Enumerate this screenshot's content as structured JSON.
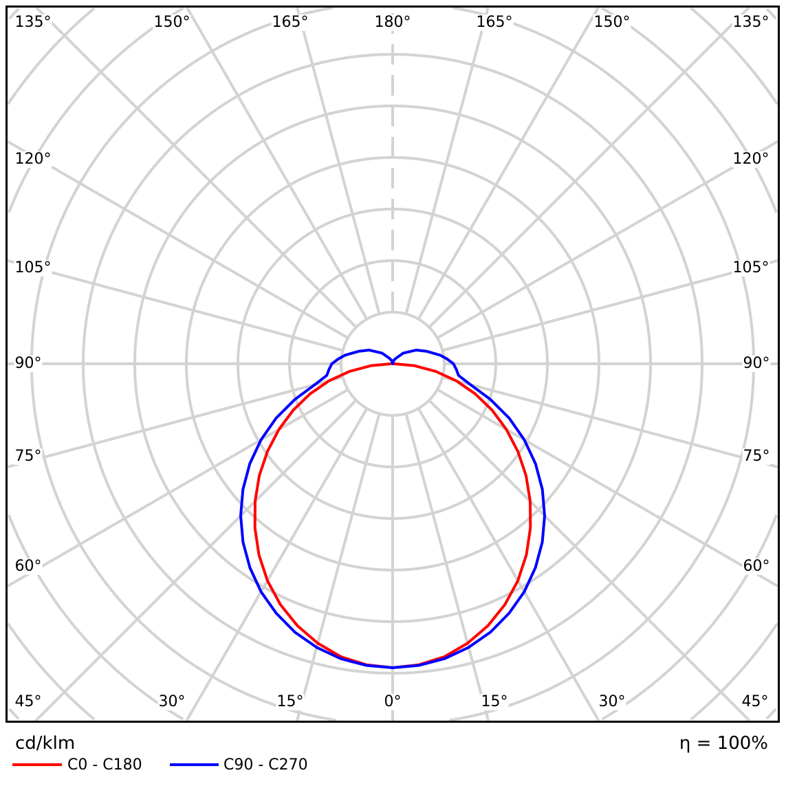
{
  "chart_data": {
    "type": "polar",
    "unit_label": "cd/klm",
    "efficiency_label": "η = 100%",
    "angle_labels": {
      "top": [
        "135°",
        "150°",
        "165°",
        "180°",
        "165°",
        "150°",
        "135°"
      ],
      "left": [
        "120°",
        "105°",
        "90°",
        "75°",
        "60°"
      ],
      "right": [
        "120°",
        "105°",
        "90°",
        "75°",
        "60°"
      ],
      "bottom": [
        "45°",
        "30°",
        "15°",
        "0°",
        "15°",
        "30°",
        "45°"
      ]
    },
    "angles_deg": [
      0,
      5,
      10,
      15,
      20,
      25,
      30,
      35,
      40,
      45,
      50,
      55,
      60,
      65,
      70,
      75,
      80,
      85,
      90,
      95,
      100,
      110,
      120,
      135,
      150,
      165,
      180
    ],
    "series": [
      {
        "name": "C0 - C180",
        "color": "#ff0000",
        "values": [
          100,
          99.4,
          97.9,
          95.2,
          91.7,
          87.4,
          82.4,
          76.7,
          70.5,
          64.0,
          57.3,
          50.3,
          43.2,
          36.1,
          28.9,
          21.7,
          14.4,
          7.2,
          0.5,
          0.3,
          0.2,
          0,
          0,
          0,
          0,
          0,
          0
        ]
      },
      {
        "name": "C90 - C270",
        "color": "#0000ff",
        "values": [
          100,
          99.6,
          98.5,
          96.6,
          94.0,
          90.6,
          86.6,
          81.9,
          76.6,
          70.7,
          64.3,
          57.4,
          50.0,
          42.3,
          34.2,
          26.5,
          22.0,
          21.0,
          20.0,
          18.0,
          16.0,
          12.0,
          9.0,
          5.0,
          2.0,
          1.0,
          0
        ]
      }
    ],
    "grid": true,
    "legend": "bottom-left"
  }
}
